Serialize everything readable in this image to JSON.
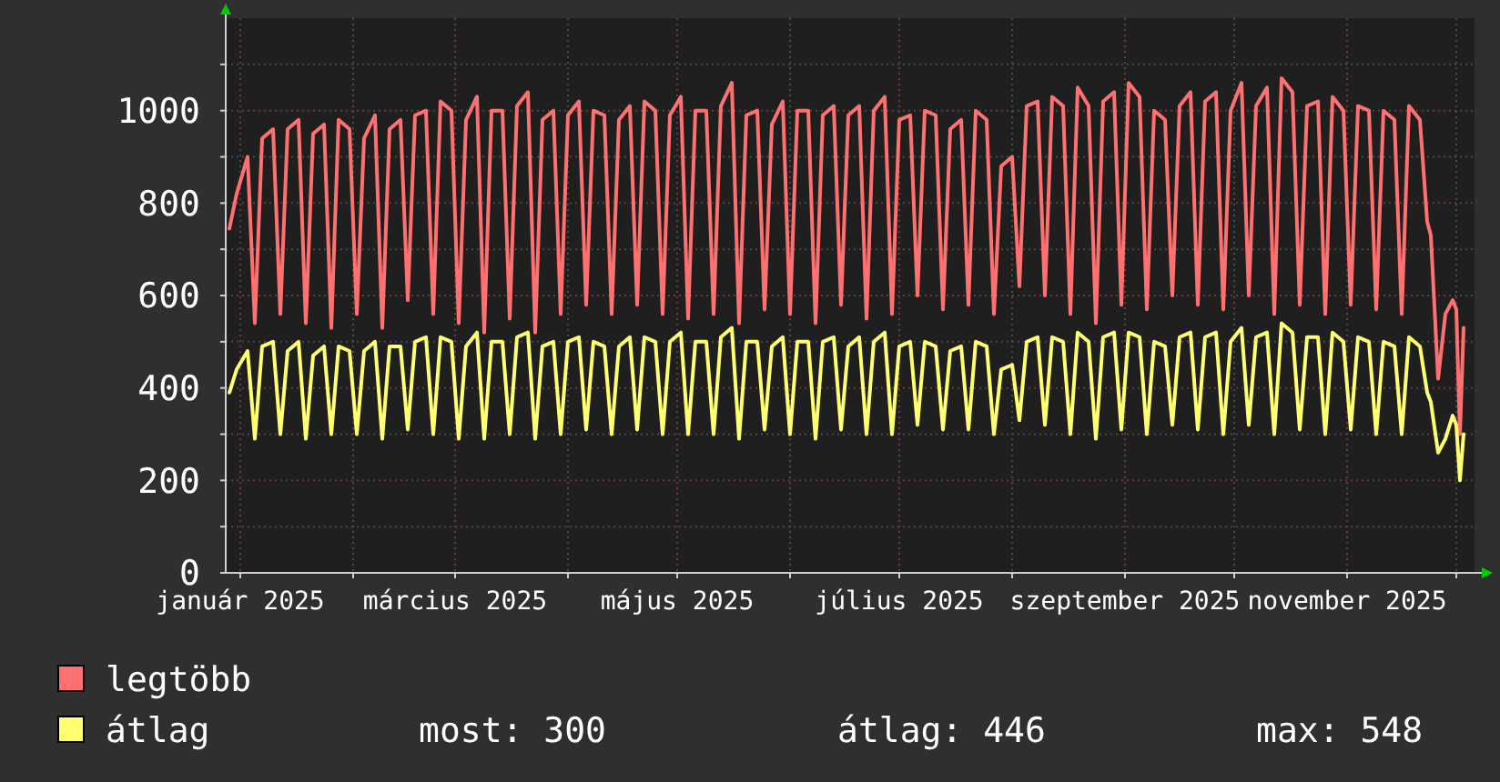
{
  "chart_data": {
    "type": "line",
    "x": [
      "2024-12-29",
      "2024-12-31",
      "2025-01-03",
      "2025-01-05",
      "2025-01-07",
      "2025-01-10",
      "2025-01-12",
      "2025-01-14",
      "2025-01-17",
      "2025-01-19",
      "2025-01-21",
      "2025-01-24",
      "2025-01-26",
      "2025-01-28",
      "2025-01-31",
      "2025-02-02",
      "2025-02-04",
      "2025-02-07",
      "2025-02-09",
      "2025-02-11",
      "2025-02-14",
      "2025-02-16",
      "2025-02-18",
      "2025-02-21",
      "2025-02-23",
      "2025-02-25",
      "2025-02-28",
      "2025-03-02",
      "2025-03-04",
      "2025-03-07",
      "2025-03-09",
      "2025-03-11",
      "2025-03-14",
      "2025-03-16",
      "2025-03-18",
      "2025-03-21",
      "2025-03-23",
      "2025-03-25",
      "2025-03-28",
      "2025-03-30",
      "2025-04-01",
      "2025-04-04",
      "2025-04-06",
      "2025-04-08",
      "2025-04-11",
      "2025-04-13",
      "2025-04-15",
      "2025-04-18",
      "2025-04-20",
      "2025-04-22",
      "2025-04-25",
      "2025-04-27",
      "2025-04-29",
      "2025-05-02",
      "2025-05-04",
      "2025-05-06",
      "2025-05-09",
      "2025-05-11",
      "2025-05-13",
      "2025-05-16",
      "2025-05-18",
      "2025-05-20",
      "2025-05-23",
      "2025-05-25",
      "2025-05-27",
      "2025-05-30",
      "2025-06-01",
      "2025-06-03",
      "2025-06-06",
      "2025-06-08",
      "2025-06-10",
      "2025-06-13",
      "2025-06-15",
      "2025-06-17",
      "2025-06-20",
      "2025-06-22",
      "2025-06-24",
      "2025-06-27",
      "2025-06-29",
      "2025-07-01",
      "2025-07-04",
      "2025-07-06",
      "2025-07-08",
      "2025-07-11",
      "2025-07-13",
      "2025-07-15",
      "2025-07-18",
      "2025-07-20",
      "2025-07-22",
      "2025-07-25",
      "2025-07-27",
      "2025-07-29",
      "2025-08-01",
      "2025-08-03",
      "2025-08-05",
      "2025-08-08",
      "2025-08-10",
      "2025-08-12",
      "2025-08-15",
      "2025-08-17",
      "2025-08-19",
      "2025-08-22",
      "2025-08-24",
      "2025-08-26",
      "2025-08-29",
      "2025-08-31",
      "2025-09-02",
      "2025-09-05",
      "2025-09-07",
      "2025-09-09",
      "2025-09-12",
      "2025-09-14",
      "2025-09-16",
      "2025-09-19",
      "2025-09-21",
      "2025-09-23",
      "2025-09-26",
      "2025-09-28",
      "2025-09-30",
      "2025-10-03",
      "2025-10-05",
      "2025-10-07",
      "2025-10-10",
      "2025-10-12",
      "2025-10-14",
      "2025-10-17",
      "2025-10-19",
      "2025-10-21",
      "2025-10-24",
      "2025-10-26",
      "2025-10-28",
      "2025-10-31",
      "2025-11-02",
      "2025-11-04",
      "2025-11-07",
      "2025-11-09",
      "2025-11-11",
      "2025-11-14",
      "2025-11-16",
      "2025-11-18",
      "2025-11-21",
      "2025-11-23",
      "2025-11-24",
      "2025-11-26",
      "2025-11-28",
      "2025-11-30",
      "2025-12-01",
      "2025-12-02",
      "2025-12-03"
    ],
    "series": [
      {
        "name": "legtöbb",
        "color": "#ff7070",
        "values": [
          745,
          820,
          900,
          540,
          940,
          960,
          560,
          960,
          980,
          540,
          950,
          970,
          530,
          980,
          960,
          560,
          940,
          990,
          530,
          960,
          980,
          590,
          990,
          1000,
          560,
          1020,
          1000,
          540,
          980,
          1030,
          520,
          1000,
          1000,
          550,
          1010,
          1040,
          520,
          980,
          1000,
          560,
          990,
          1020,
          580,
          1000,
          990,
          560,
          980,
          1010,
          580,
          1020,
          1000,
          560,
          990,
          1030,
          550,
          1000,
          1000,
          560,
          1010,
          1060,
          540,
          990,
          1000,
          570,
          970,
          1020,
          560,
          1000,
          1000,
          540,
          990,
          1010,
          580,
          990,
          1010,
          550,
          1000,
          1030,
          560,
          980,
          990,
          600,
          1000,
          990,
          570,
          960,
          980,
          580,
          1000,
          980,
          560,
          880,
          900,
          620,
          1010,
          1020,
          600,
          1030,
          1010,
          560,
          1050,
          1010,
          540,
          1020,
          1040,
          580,
          1060,
          1030,
          570,
          1000,
          980,
          600,
          1010,
          1040,
          580,
          1020,
          1040,
          570,
          1000,
          1060,
          600,
          1010,
          1050,
          560,
          1070,
          1040,
          580,
          1010,
          1020,
          560,
          1030,
          1000,
          580,
          1010,
          1000,
          570,
          1000,
          980,
          560,
          1010,
          980,
          760,
          730,
          420,
          560,
          590,
          570,
          300,
          530
        ]
      },
      {
        "name": "átlag",
        "color": "#ffff70",
        "values": [
          390,
          440,
          480,
          290,
          490,
          500,
          300,
          480,
          500,
          290,
          470,
          490,
          300,
          490,
          480,
          300,
          480,
          500,
          290,
          490,
          490,
          310,
          500,
          510,
          300,
          510,
          500,
          290,
          490,
          520,
          290,
          500,
          500,
          300,
          510,
          520,
          290,
          490,
          500,
          300,
          500,
          510,
          310,
          500,
          490,
          300,
          490,
          510,
          310,
          510,
          500,
          300,
          500,
          520,
          300,
          500,
          500,
          300,
          510,
          530,
          290,
          500,
          500,
          310,
          490,
          510,
          300,
          500,
          500,
          290,
          500,
          510,
          310,
          490,
          510,
          300,
          500,
          520,
          300,
          490,
          500,
          320,
          500,
          490,
          310,
          480,
          490,
          310,
          500,
          490,
          300,
          440,
          450,
          330,
          500,
          510,
          320,
          510,
          500,
          300,
          520,
          500,
          290,
          510,
          520,
          310,
          520,
          510,
          300,
          500,
          490,
          320,
          510,
          520,
          310,
          510,
          520,
          300,
          500,
          530,
          320,
          510,
          520,
          300,
          540,
          520,
          310,
          510,
          510,
          300,
          520,
          500,
          310,
          510,
          500,
          300,
          500,
          490,
          300,
          510,
          490,
          390,
          370,
          260,
          290,
          340,
          320,
          200,
          300
        ]
      }
    ],
    "xlim": [
      "2024-12-28",
      "2025-12-06"
    ],
    "xticks": [
      {
        "value": "2025-01-01",
        "label": "január 2025"
      },
      {
        "value": "2025-02-01",
        "label": null
      },
      {
        "value": "2025-03-01",
        "label": "március 2025"
      },
      {
        "value": "2025-04-01",
        "label": null
      },
      {
        "value": "2025-05-01",
        "label": "május 2025"
      },
      {
        "value": "2025-06-01",
        "label": null
      },
      {
        "value": "2025-07-01",
        "label": "július 2025"
      },
      {
        "value": "2025-08-01",
        "label": null
      },
      {
        "value": "2025-09-01",
        "label": "szeptember 2025"
      },
      {
        "value": "2025-10-01",
        "label": null
      },
      {
        "value": "2025-11-01",
        "label": "november 2025"
      },
      {
        "value": "2025-12-01",
        "label": null
      }
    ],
    "ylim": [
      0,
      1200
    ],
    "yticks": [
      0,
      {
        "value": 100,
        "label": null
      },
      200,
      {
        "value": 300,
        "label": null
      },
      400,
      {
        "value": 500,
        "label": null
      },
      600,
      {
        "value": 700,
        "label": null
      },
      800,
      {
        "value": 900,
        "label": null
      },
      1000,
      {
        "value": 1100,
        "label": null
      }
    ],
    "grid": true,
    "legend": "bottom",
    "marker": "none",
    "line_style": "solid",
    "annotations": [
      "most: 300",
      "átlag: 446",
      "max: 548"
    ]
  }
}
